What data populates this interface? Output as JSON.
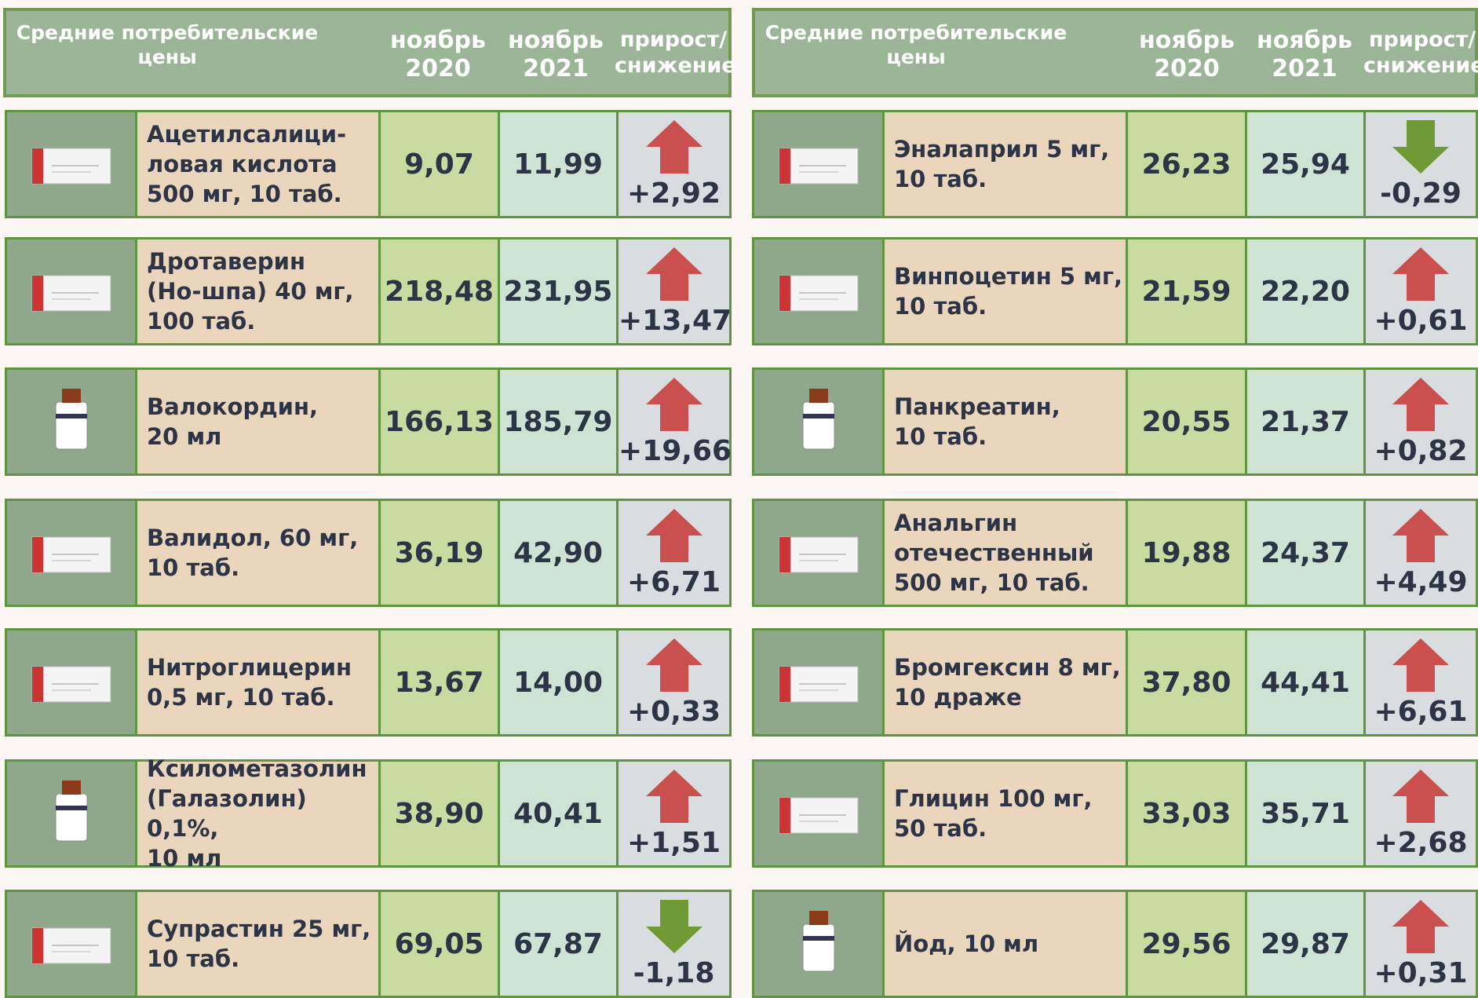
{
  "tables": [
    {
      "header": {
        "title": "Средние потребительские\nцены",
        "columns": [
          "ноябрь\n2020",
          "ноябрь\n2021",
          "прирост/\nснижение"
        ]
      },
      "rows": [
        {
          "name": "Ацетилсалици-\nловая кислота\n500 мг, 10 таб.",
          "nov2020": "9,07",
          "nov2021": "11,99",
          "change": "+2,92"
        },
        {
          "name": "Дротаверин\n(Но-шпа) 40 мг,\n100 таб.",
          "nov2020": "218,48",
          "nov2021": "231,95",
          "change": "+13,47"
        },
        {
          "name": "Валокордин,\n20 мл",
          "nov2020": "166,13",
          "nov2021": "185,79",
          "change": "+19,66"
        },
        {
          "name": "Валидол, 60 мг,\n10 таб.",
          "nov2020": "36,19",
          "nov2021": "42,90",
          "change": "+6,71"
        },
        {
          "name": "Нитроглицерин\n0,5 мг,  10 таб.",
          "nov2020": "13,67",
          "nov2021": "14,00",
          "change": "+0,33"
        },
        {
          "name": "Ксилометазолин\n(Галазолин) 0,1%,\n10 мл",
          "nov2020": "38,90",
          "nov2021": "40,41",
          "change": "+1,51"
        },
        {
          "name": "Супрастин 25 мг,\n10 таб.",
          "nov2020": "69,05",
          "nov2021": "67,87",
          "change": "-1,18"
        }
      ]
    },
    {
      "header": {
        "title": "Средние потребительские\nцены",
        "columns": [
          "ноябрь\n2020",
          "ноябрь\n2021",
          "прирост/\nснижение"
        ]
      },
      "rows": [
        {
          "name": "Эналаприл 5 мг,\n10 таб.",
          "nov2020": "26,23",
          "nov2021": "25,94",
          "change": "-0,29"
        },
        {
          "name": "Винпоцетин 5 мг,\n10 таб.",
          "nov2020": "21,59",
          "nov2021": "22,20",
          "change": "+0,61"
        },
        {
          "name": "Панкреатин,\n10 таб.",
          "nov2020": "20,55",
          "nov2021": "21,37",
          "change": "+0,82"
        },
        {
          "name": "Анальгин\nотечественный\n500 мг, 10 таб.",
          "nov2020": "19,88",
          "nov2021": "24,37",
          "change": "+4,49"
        },
        {
          "name": "Бромгексин 8 мг,\n10 драже",
          "nov2020": "37,80",
          "nov2021": "44,41",
          "change": "+6,61"
        },
        {
          "name": "Глицин 100 мг,\n50 таб.",
          "nov2020": "33,03",
          "nov2021": "35,71",
          "change": "+2,68"
        },
        {
          "name": "Йод, 10 мл",
          "nov2020": "29,56",
          "nov2021": "29,87",
          "change": "+0,31"
        }
      ]
    }
  ]
}
